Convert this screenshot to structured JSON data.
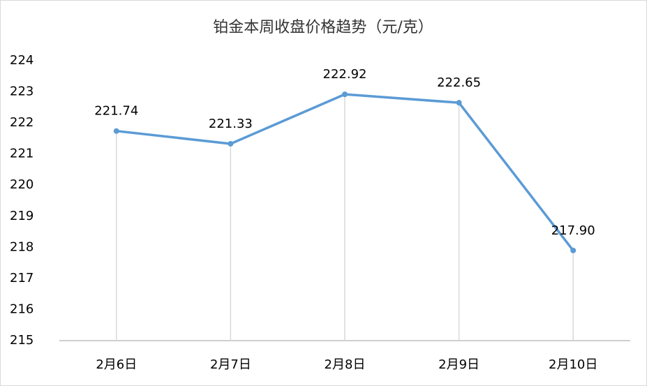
{
  "chart_data": {
    "type": "line",
    "title": "铂金本周收盘价格趋势（元/克）",
    "categories": [
      "2月6日",
      "2月7日",
      "2月8日",
      "2月9日",
      "2月10日"
    ],
    "values": [
      221.74,
      221.33,
      222.92,
      222.65,
      217.9
    ],
    "value_labels": [
      "221.74",
      "221.33",
      "222.92",
      "222.65",
      "217.90"
    ],
    "color": "#5b9bd5",
    "ylim": [
      215,
      224
    ],
    "yticks": [
      215,
      216,
      217,
      218,
      219,
      220,
      221,
      222,
      223,
      224
    ],
    "grid": false,
    "drop_lines": true
  }
}
